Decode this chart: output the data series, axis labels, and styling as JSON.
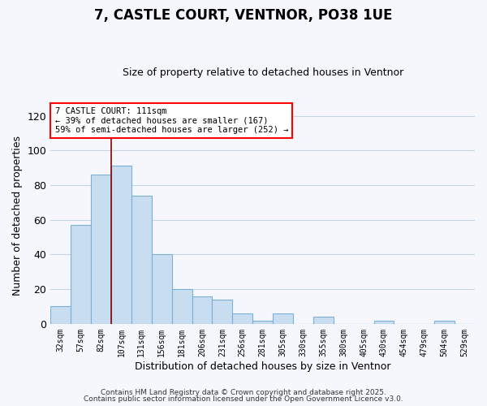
{
  "title": "7, CASTLE COURT, VENTNOR, PO38 1UE",
  "subtitle": "Size of property relative to detached houses in Ventnor",
  "xlabel": "Distribution of detached houses by size in Ventnor",
  "ylabel": "Number of detached properties",
  "bar_labels": [
    "32sqm",
    "57sqm",
    "82sqm",
    "107sqm",
    "131sqm",
    "156sqm",
    "181sqm",
    "206sqm",
    "231sqm",
    "256sqm",
    "281sqm",
    "305sqm",
    "330sqm",
    "355sqm",
    "380sqm",
    "405sqm",
    "430sqm",
    "454sqm",
    "479sqm",
    "504sqm",
    "529sqm"
  ],
  "bar_values": [
    10,
    57,
    86,
    91,
    74,
    40,
    20,
    16,
    14,
    6,
    2,
    6,
    0,
    4,
    0,
    0,
    2,
    0,
    0,
    2,
    0
  ],
  "bar_color": "#c9ddf0",
  "bar_edge_color": "#7ab0d8",
  "vline_x_index": 3,
  "vline_color": "#8b0000",
  "ylim": [
    0,
    125
  ],
  "yticks": [
    0,
    20,
    40,
    60,
    80,
    100,
    120
  ],
  "annotation_line1": "7 CASTLE COURT: 111sqm",
  "annotation_line2": "← 39% of detached houses are smaller (167)",
  "annotation_line3": "59% of semi-detached houses are larger (252) →",
  "footer1": "Contains HM Land Registry data © Crown copyright and database right 2025.",
  "footer2": "Contains public sector information licensed under the Open Government Licence v3.0.",
  "background_color": "#f5f7fc",
  "grid_color": "#c8d4e8"
}
